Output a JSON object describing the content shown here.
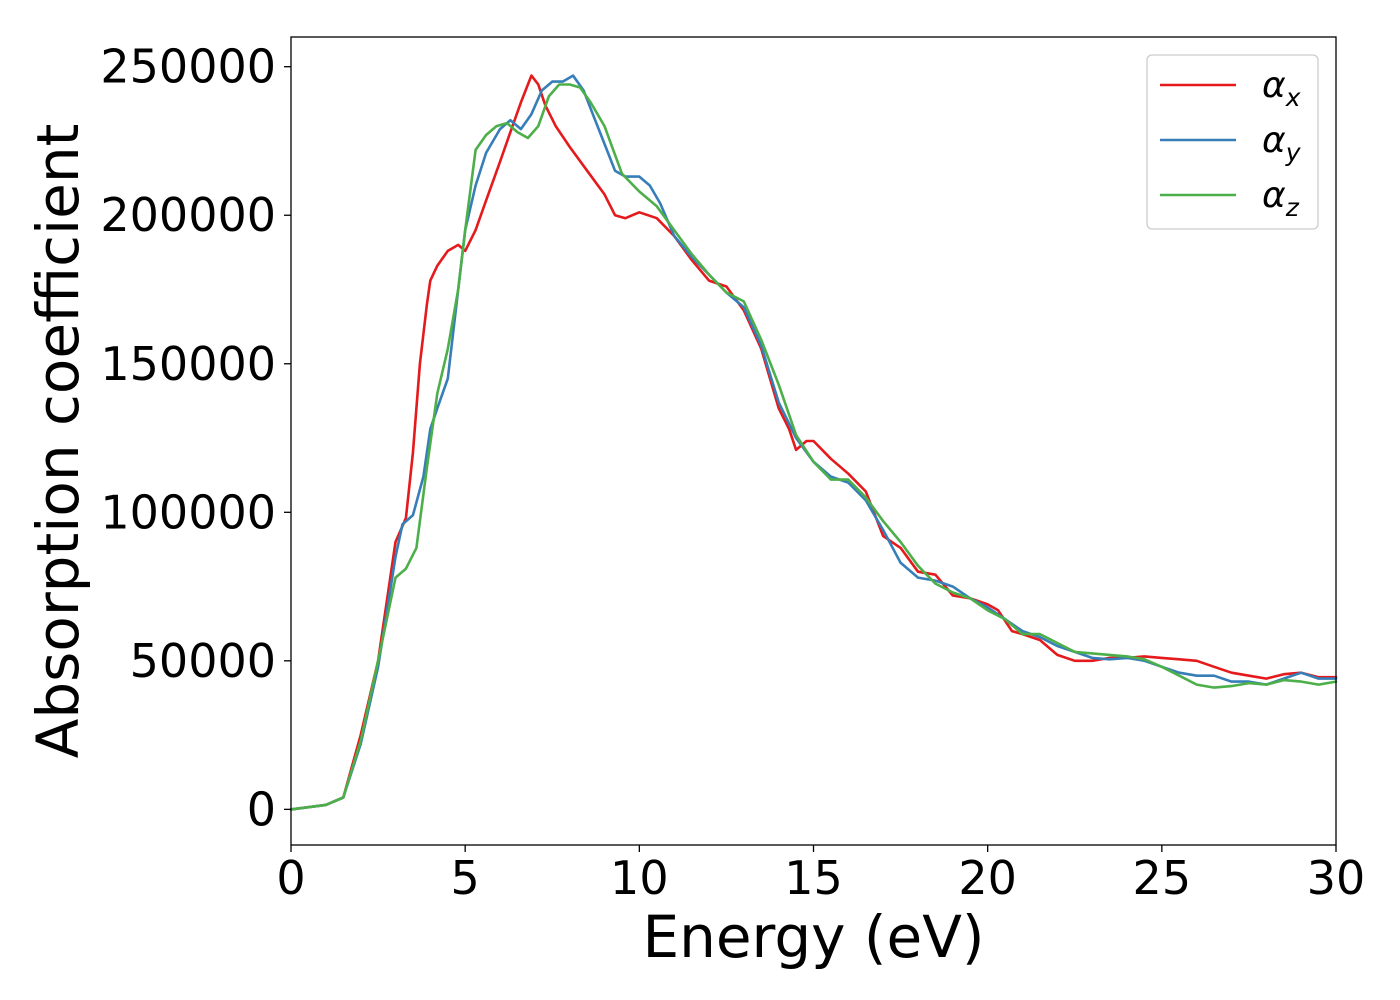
{
  "chart_data": {
    "type": "line",
    "xlabel": "Energy (eV)",
    "ylabel": "Absorption coefficient",
    "xlim": [
      0,
      30
    ],
    "ylim": [
      -12000,
      260000
    ],
    "xticks": [
      0,
      5,
      10,
      15,
      20,
      25,
      30
    ],
    "xtick_labels": [
      "0",
      "5",
      "10",
      "15",
      "20",
      "25",
      "30"
    ],
    "yticks": [
      0,
      50000,
      100000,
      150000,
      200000,
      250000
    ],
    "ytick_labels": [
      "0",
      "50000",
      "100000",
      "150000",
      "200000",
      "250000"
    ],
    "grid": false,
    "legend": {
      "position": "top-right",
      "entries": [
        {
          "base": "α",
          "sub": "x"
        },
        {
          "base": "α",
          "sub": "y"
        },
        {
          "base": "α",
          "sub": "z"
        }
      ]
    },
    "series": [
      {
        "color": "#e41a1c",
        "x": [
          0,
          1,
          1.5,
          2,
          2.5,
          3,
          3.3,
          3.5,
          3.7,
          3.9,
          4,
          4.2,
          4.5,
          4.8,
          5,
          5.3,
          5.6,
          6,
          6.3,
          6.6,
          6.9,
          7.1,
          7.3,
          7.6,
          8,
          8.5,
          9,
          9.3,
          9.6,
          9.8,
          10,
          10.5,
          11,
          11.5,
          12,
          12.5,
          13,
          13.5,
          14,
          14.3,
          14.5,
          14.8,
          15,
          15.5,
          16,
          16.5,
          17,
          17.5,
          18,
          18.5,
          19,
          19.5,
          20,
          20.3,
          20.7,
          21,
          21.5,
          22,
          22.5,
          23,
          23.5,
          24,
          24.5,
          25,
          25.5,
          26,
          26.5,
          27,
          27.5,
          28,
          28.5,
          29,
          29.5,
          30
        ],
        "y": [
          0,
          1500,
          4000,
          25000,
          50000,
          90000,
          98000,
          120000,
          150000,
          170000,
          178000,
          183000,
          188000,
          190000,
          188000,
          195000,
          205000,
          218000,
          228000,
          238000,
          247000,
          244000,
          237000,
          230000,
          223000,
          215000,
          207000,
          200000,
          199000,
          200000,
          201000,
          199000,
          193000,
          185000,
          178000,
          176000,
          168000,
          155000,
          135000,
          128000,
          121000,
          124000,
          124000,
          118000,
          113000,
          107000,
          92000,
          88000,
          80000,
          79000,
          72000,
          71000,
          69000,
          67000,
          60000,
          59000,
          57000,
          52000,
          50000,
          50000,
          51000,
          51000,
          51500,
          51000,
          50500,
          50000,
          48000,
          46000,
          45000,
          44000,
          45500,
          46000,
          44500,
          44500
        ]
      },
      {
        "color": "#377eb8",
        "x": [
          0,
          1,
          1.5,
          2,
          2.5,
          3,
          3.2,
          3.5,
          3.8,
          4,
          4.2,
          4.5,
          4.8,
          5,
          5.3,
          5.6,
          6,
          6.3,
          6.6,
          6.9,
          7.2,
          7.5,
          7.8,
          8.1,
          8.4,
          8.7,
          9,
          9.3,
          9.6,
          10,
          10.3,
          10.6,
          11,
          11.5,
          12,
          12.5,
          13,
          13.5,
          14,
          14.5,
          15,
          15.5,
          16,
          16.5,
          17,
          17.5,
          18,
          18.5,
          19,
          19.5,
          20,
          20.5,
          21,
          21.5,
          22,
          22.5,
          23,
          23.5,
          24,
          24.5,
          25,
          25.5,
          26,
          26.5,
          27,
          27.5,
          28,
          28.5,
          29,
          29.5,
          30
        ],
        "y": [
          0,
          1500,
          4000,
          22000,
          48000,
          85000,
          96000,
          99000,
          112000,
          128000,
          135000,
          145000,
          175000,
          195000,
          210000,
          221000,
          229000,
          232000,
          229000,
          234000,
          242000,
          245000,
          245000,
          247000,
          242000,
          233000,
          224000,
          215000,
          213000,
          213000,
          210000,
          204000,
          193000,
          186000,
          180000,
          174000,
          169000,
          156000,
          137000,
          125000,
          117000,
          112000,
          110000,
          104000,
          94000,
          83000,
          78000,
          77000,
          75000,
          71000,
          68000,
          64000,
          60000,
          58000,
          55000,
          53000,
          51000,
          50500,
          51000,
          50000,
          48000,
          46000,
          45000,
          45000,
          43000,
          43000,
          42000,
          44000,
          46000,
          44000,
          44000
        ]
      },
      {
        "color": "#4daf4a",
        "x": [
          0,
          1,
          1.5,
          2,
          2.5,
          3,
          3.3,
          3.6,
          3.9,
          4.2,
          4.5,
          4.8,
          5,
          5.3,
          5.6,
          5.9,
          6.2,
          6.5,
          6.8,
          7.1,
          7.4,
          7.7,
          8,
          8.3,
          8.6,
          9,
          9.5,
          10,
          10.5,
          11,
          11.5,
          12,
          12.5,
          13,
          13.5,
          14,
          14.5,
          15,
          15.5,
          16,
          16.5,
          17,
          17.5,
          18,
          18.5,
          19,
          19.5,
          20,
          20.5,
          21,
          21.5,
          22,
          22.5,
          23,
          23.5,
          24,
          24.5,
          25,
          25.5,
          26,
          26.5,
          27,
          27.5,
          28,
          28.5,
          29,
          29.5,
          30
        ],
        "y": [
          0,
          1500,
          4000,
          23000,
          50000,
          78000,
          81000,
          88000,
          115000,
          140000,
          155000,
          175000,
          195000,
          222000,
          227000,
          230000,
          231000,
          228000,
          226000,
          230000,
          240000,
          244000,
          244000,
          243000,
          238000,
          230000,
          214000,
          208000,
          203000,
          195000,
          187000,
          180000,
          174000,
          171000,
          158000,
          143000,
          126000,
          117000,
          111000,
          111000,
          105000,
          97000,
          90000,
          82000,
          76000,
          73000,
          71000,
          67000,
          64000,
          59000,
          59000,
          56000,
          53000,
          52500,
          52000,
          51500,
          50500,
          48000,
          45000,
          42000,
          41000,
          41500,
          42500,
          42000,
          43500,
          43000,
          42000,
          43000
        ]
      }
    ]
  }
}
